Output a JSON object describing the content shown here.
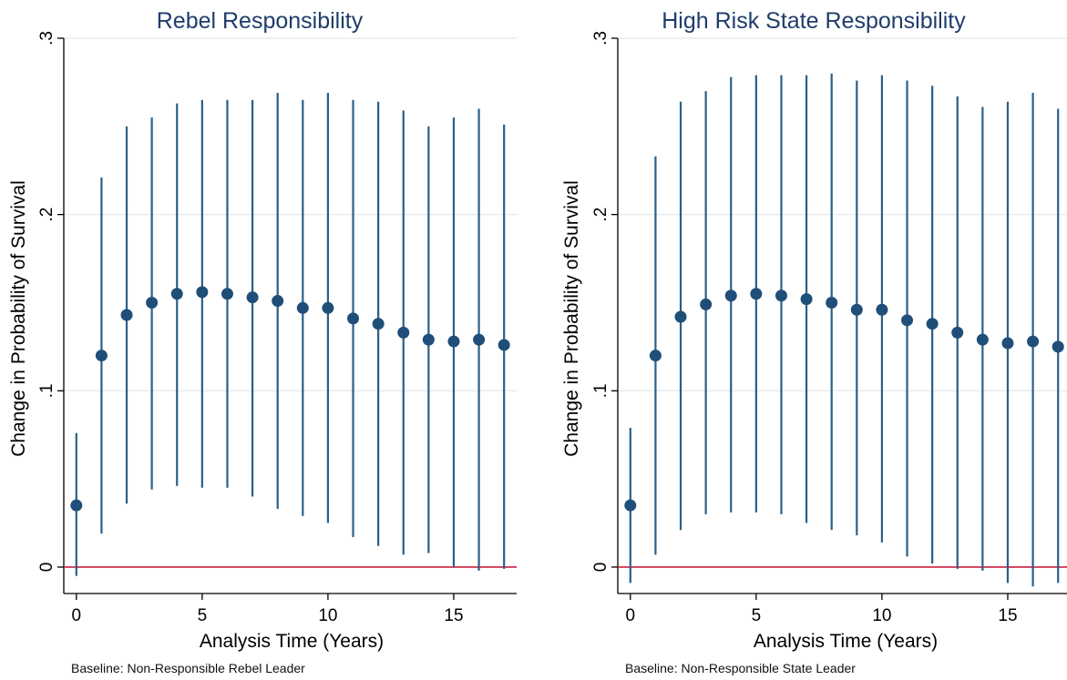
{
  "colors": {
    "marker": "#1f4e79",
    "ci_line": "#2b5f86",
    "baseline": "#d0223f",
    "title": "#1f3d6b"
  },
  "chart_data": [
    {
      "type": "scatter",
      "subtype": "point-with-confidence-interval",
      "title": "Rebel Responsibility",
      "xlabel": "Analysis Time (Years)",
      "ylabel": "Change in Probability of Survival",
      "note": "Baseline: Non-Responsible Rebel Leader",
      "xlim": [
        -0.5,
        17.5
      ],
      "ylim": [
        -0.015,
        0.3
      ],
      "xticks": [
        0,
        5,
        10,
        15
      ],
      "xtick_labels": [
        "0",
        "5",
        "10",
        "15"
      ],
      "yticks": [
        0,
        0.1,
        0.2,
        0.3
      ],
      "ytick_labels": [
        "0",
        ".1",
        ".2",
        ".3"
      ],
      "reference_line_y": 0,
      "grid": true,
      "x": [
        0,
        1,
        2,
        3,
        4,
        5,
        6,
        7,
        8,
        9,
        10,
        11,
        12,
        13,
        14,
        15,
        16,
        17
      ],
      "y": [
        0.035,
        0.12,
        0.143,
        0.15,
        0.155,
        0.156,
        0.155,
        0.153,
        0.151,
        0.147,
        0.147,
        0.141,
        0.138,
        0.133,
        0.129,
        0.128,
        0.129,
        0.126
      ],
      "ci_low": [
        -0.005,
        0.019,
        0.036,
        0.044,
        0.046,
        0.045,
        0.045,
        0.04,
        0.033,
        0.029,
        0.025,
        0.017,
        0.012,
        0.007,
        0.008,
        0.0,
        -0.002,
        -0.001
      ],
      "ci_high": [
        0.076,
        0.221,
        0.25,
        0.255,
        0.263,
        0.265,
        0.265,
        0.265,
        0.269,
        0.265,
        0.269,
        0.265,
        0.264,
        0.259,
        0.25,
        0.255,
        0.26,
        0.251
      ]
    },
    {
      "type": "scatter",
      "subtype": "point-with-confidence-interval",
      "title": "High Risk State Responsibility",
      "xlabel": "Analysis Time (Years)",
      "ylabel": "Change in Probability of Survival",
      "note": "Baseline: Non-Responsible State Leader",
      "xlim": [
        -0.5,
        17.5
      ],
      "ylim": [
        -0.015,
        0.3
      ],
      "xticks": [
        0,
        5,
        10,
        15
      ],
      "xtick_labels": [
        "0",
        "5",
        "10",
        "15"
      ],
      "yticks": [
        0,
        0.1,
        0.2,
        0.3
      ],
      "ytick_labels": [
        "0",
        ".1",
        ".2",
        ".3"
      ],
      "reference_line_y": 0,
      "grid": true,
      "x": [
        0,
        1,
        2,
        3,
        4,
        5,
        6,
        7,
        8,
        9,
        10,
        11,
        12,
        13,
        14,
        15,
        16,
        17
      ],
      "y": [
        0.035,
        0.12,
        0.142,
        0.149,
        0.154,
        0.155,
        0.154,
        0.152,
        0.15,
        0.146,
        0.146,
        0.14,
        0.138,
        0.133,
        0.129,
        0.127,
        0.128,
        0.125
      ],
      "ci_low": [
        -0.009,
        0.007,
        0.021,
        0.03,
        0.031,
        0.031,
        0.03,
        0.025,
        0.021,
        0.018,
        0.014,
        0.006,
        0.002,
        -0.001,
        -0.002,
        -0.009,
        -0.011,
        -0.009
      ],
      "ci_high": [
        0.079,
        0.233,
        0.264,
        0.27,
        0.278,
        0.279,
        0.279,
        0.279,
        0.28,
        0.276,
        0.279,
        0.276,
        0.273,
        0.267,
        0.261,
        0.264,
        0.269,
        0.26
      ]
    }
  ]
}
